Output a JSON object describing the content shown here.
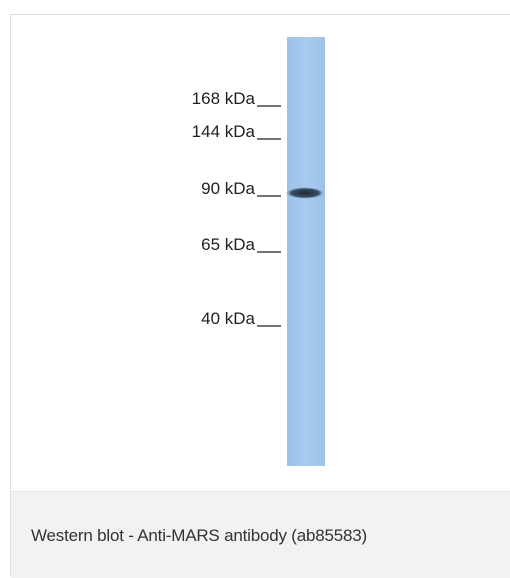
{
  "markers": [
    "168 kDa",
    "144 kDa",
    "90 kDa",
    "65 kDa",
    "40 kDa"
  ],
  "caption": "Western blot - Anti-MARS antibody (ab85583)"
}
